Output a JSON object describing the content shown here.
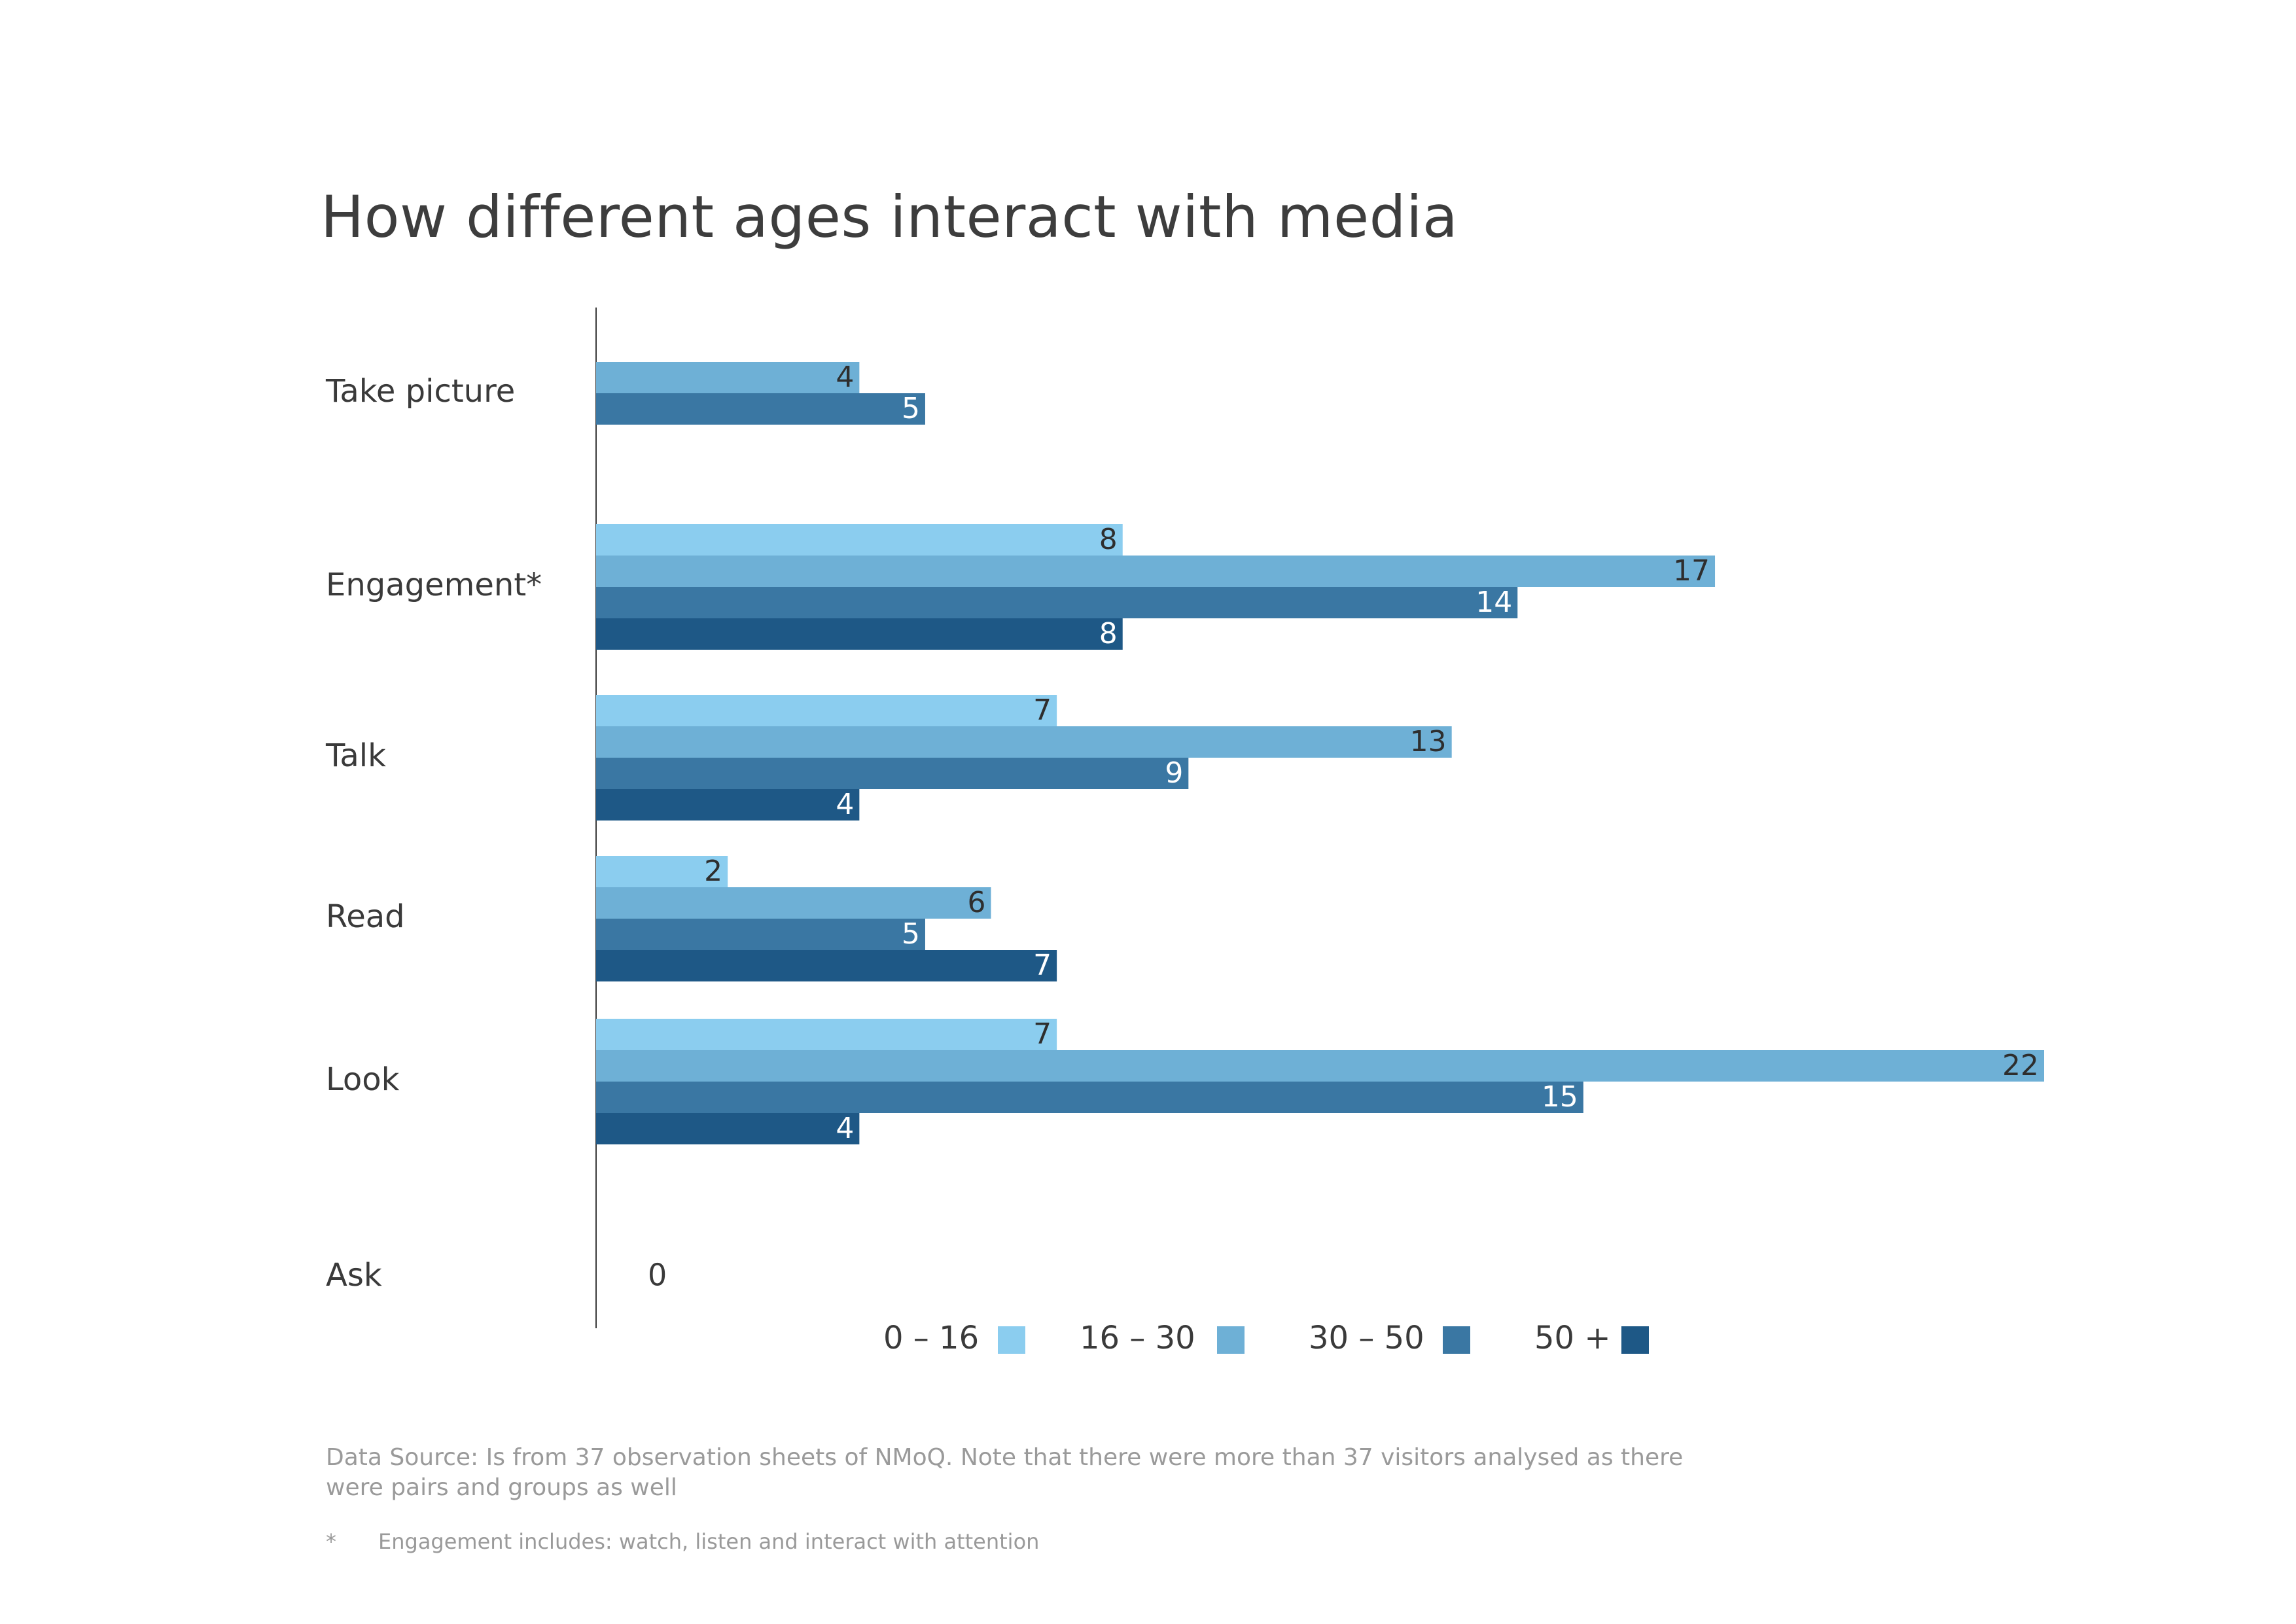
{
  "chart_data": {
    "type": "bar",
    "orientation": "horizontal",
    "title": "How different ages interact with media",
    "categories": [
      "Take picture",
      "Engagement*",
      "Talk",
      "Read",
      "Look",
      "Ask"
    ],
    "series": [
      {
        "name": "0 – 16",
        "color": "#8bcdef",
        "values": [
          null,
          8,
          7,
          2,
          7,
          null
        ]
      },
      {
        "name": "16 – 30",
        "color": "#6eb0d6",
        "values": [
          4,
          17,
          13,
          6,
          22,
          null
        ]
      },
      {
        "name": "30 – 50",
        "color": "#3a77a3",
        "values": [
          5,
          14,
          9,
          5,
          15,
          null
        ]
      },
      {
        "name": "50 +",
        "color": "#1e5886",
        "values": [
          null,
          8,
          4,
          7,
          4,
          null
        ]
      }
    ],
    "category_annotations": {
      "Ask": "0"
    },
    "xlim": [
      0,
      22
    ],
    "grid": false,
    "legend_position": "bottom"
  },
  "footnotes": {
    "source": "Data Source: Is from 37 observation sheets of NMoQ. Note that there were more than 37 visitors analysed as there were pairs and groups as well",
    "star_mark": "*",
    "star_text": "Engagement includes: watch, listen and interact with attention"
  }
}
